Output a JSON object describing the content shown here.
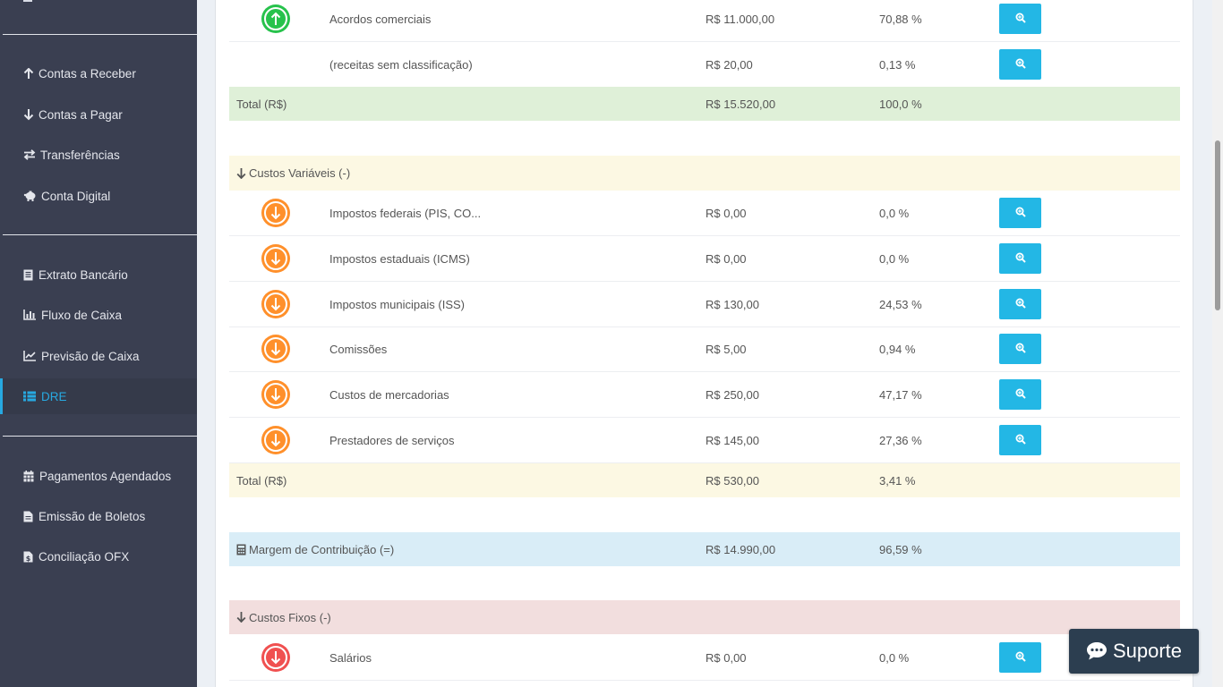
{
  "sidebar": {
    "items": [
      {
        "label": "Contas a Receber",
        "icon": "arrow-up-icon"
      },
      {
        "label": "Contas a Pagar",
        "icon": "arrow-down-icon"
      },
      {
        "label": "Transferências",
        "icon": "exchange-icon"
      },
      {
        "label": "Conta Digital",
        "icon": "piggy-bank-icon"
      },
      {
        "label": "Extrato Bancário",
        "icon": "statement-icon"
      },
      {
        "label": "Fluxo de Caixa",
        "icon": "bar-chart-icon"
      },
      {
        "label": "Previsão de Caixa",
        "icon": "line-chart-icon"
      },
      {
        "label": "DRE",
        "icon": "table-icon"
      },
      {
        "label": "Pagamentos Agendados",
        "icon": "calendar-icon"
      },
      {
        "label": "Emissão de Boletos",
        "icon": "file-icon"
      },
      {
        "label": "Conciliação OFX",
        "icon": "file-dollar-icon"
      }
    ],
    "active": "DRE"
  },
  "receitas": {
    "rows": [
      {
        "name": "Acordos comerciais",
        "value": "R$ 11.000,00",
        "pct": "70,88 %",
        "icon": "arrow-up-circle-icon"
      },
      {
        "name": "(receitas sem classificação)",
        "value": "R$ 20,00",
        "pct": "0,13 %",
        "icon": ""
      }
    ],
    "total": {
      "label": "Total (R$)",
      "value": "R$ 15.520,00",
      "pct": "100,0 %"
    }
  },
  "custos_variaveis": {
    "header": "Custos Variáveis (-)",
    "rows": [
      {
        "name": "Impostos federais (PIS, CO...",
        "value": "R$ 0,00",
        "pct": "0,0 %",
        "icon": "arrow-down-circle-icon"
      },
      {
        "name": "Impostos estaduais (ICMS)",
        "value": "R$ 0,00",
        "pct": "0,0 %",
        "icon": "arrow-down-circle-icon"
      },
      {
        "name": "Impostos municipais (ISS)",
        "value": "R$ 130,00",
        "pct": "24,53 %",
        "icon": "arrow-down-circle-icon"
      },
      {
        "name": "Comissões",
        "value": "R$ 5,00",
        "pct": "0,94 %",
        "icon": "arrow-down-circle-icon"
      },
      {
        "name": "Custos de mercadorias",
        "value": "R$ 250,00",
        "pct": "47,17 %",
        "icon": "arrow-down-circle-icon"
      },
      {
        "name": "Prestadores de serviços",
        "value": "R$ 145,00",
        "pct": "27,36 %",
        "icon": "arrow-down-circle-icon"
      }
    ],
    "total": {
      "label": "Total (R$)",
      "value": "R$ 530,00",
      "pct": "3,41 %"
    }
  },
  "margem": {
    "label": "Margem de Contribuição (=)",
    "value": "R$ 14.990,00",
    "pct": "96,59 %"
  },
  "custos_fixos": {
    "header": "Custos Fixos (-)",
    "rows": [
      {
        "name": "Salários",
        "value": "R$ 0,00",
        "pct": "0,0 %",
        "icon": "arrow-down-circle-icon"
      }
    ]
  },
  "suporte": {
    "label": "Suporte"
  },
  "colors": {
    "sidebar_bg": "#3a3f51",
    "accent": "#27a9e1",
    "button": "#23b7e5",
    "income": "#27c24c",
    "variable_cost": "#ff902b",
    "fixed_cost": "#f05050"
  }
}
